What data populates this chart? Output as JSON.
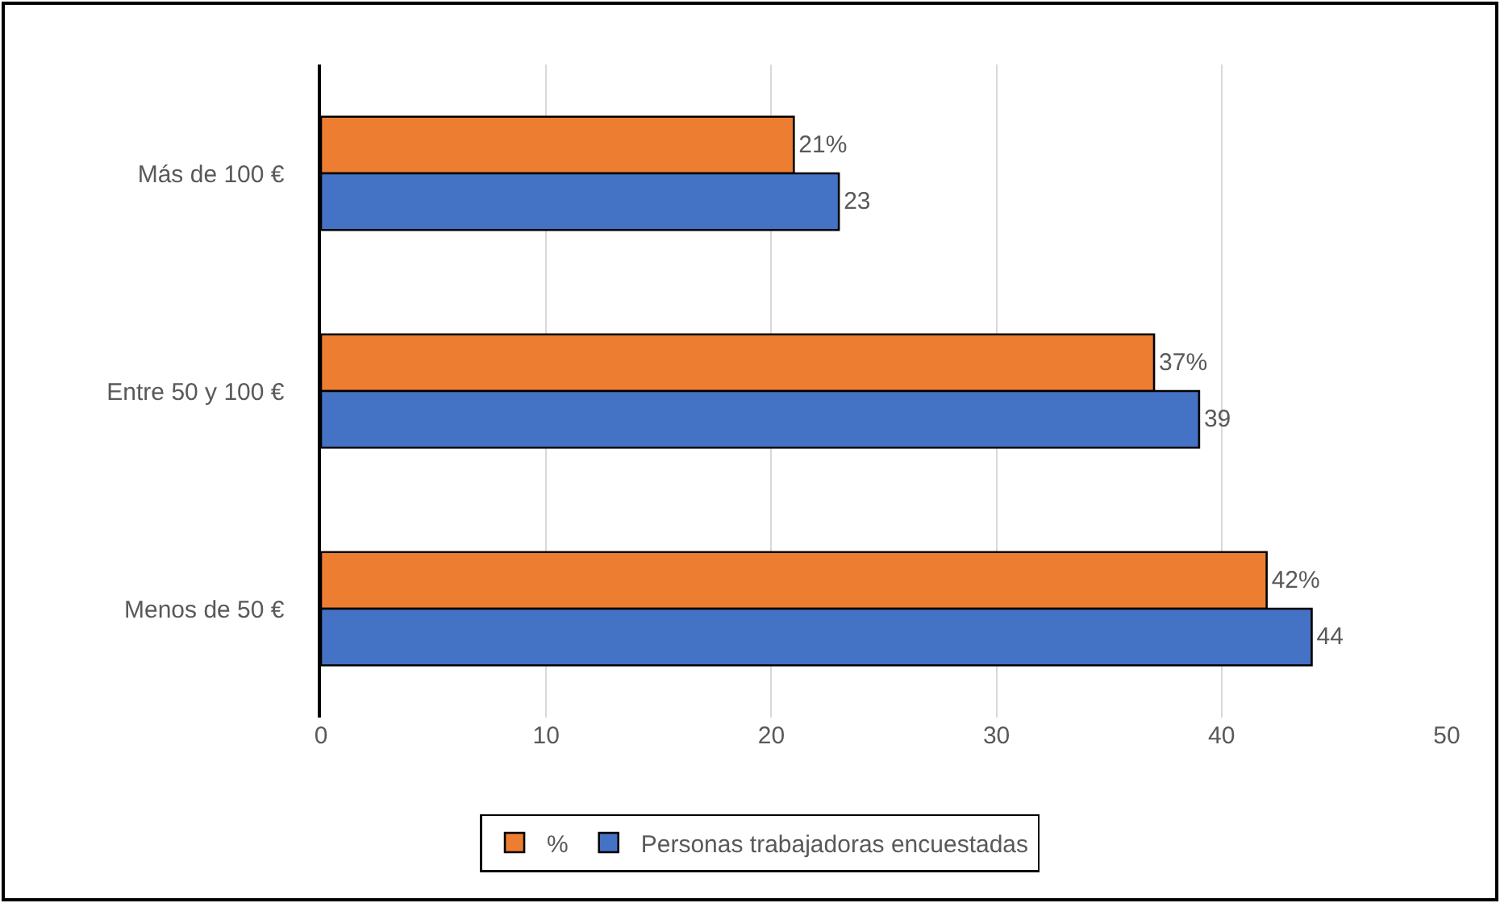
{
  "chart_data": {
    "type": "bar",
    "orientation": "horizontal",
    "categories": [
      "Más de 100 €",
      "Entre 50 y 100 €",
      "Menos de 50 €"
    ],
    "series": [
      {
        "name": "%",
        "color": "#ed7d31",
        "values": [
          21,
          37,
          42
        ],
        "value_labels": [
          "21%",
          "37%",
          "42%"
        ]
      },
      {
        "name": "Personas trabajadoras encuestadas",
        "color": "#4472c4",
        "values": [
          23,
          39,
          44
        ],
        "value_labels": [
          "23",
          "39",
          "44"
        ]
      }
    ],
    "xlim": [
      0,
      50
    ],
    "xticks": [
      0,
      10,
      20,
      30,
      40,
      50
    ],
    "grid": "x",
    "legend": "bottom"
  }
}
